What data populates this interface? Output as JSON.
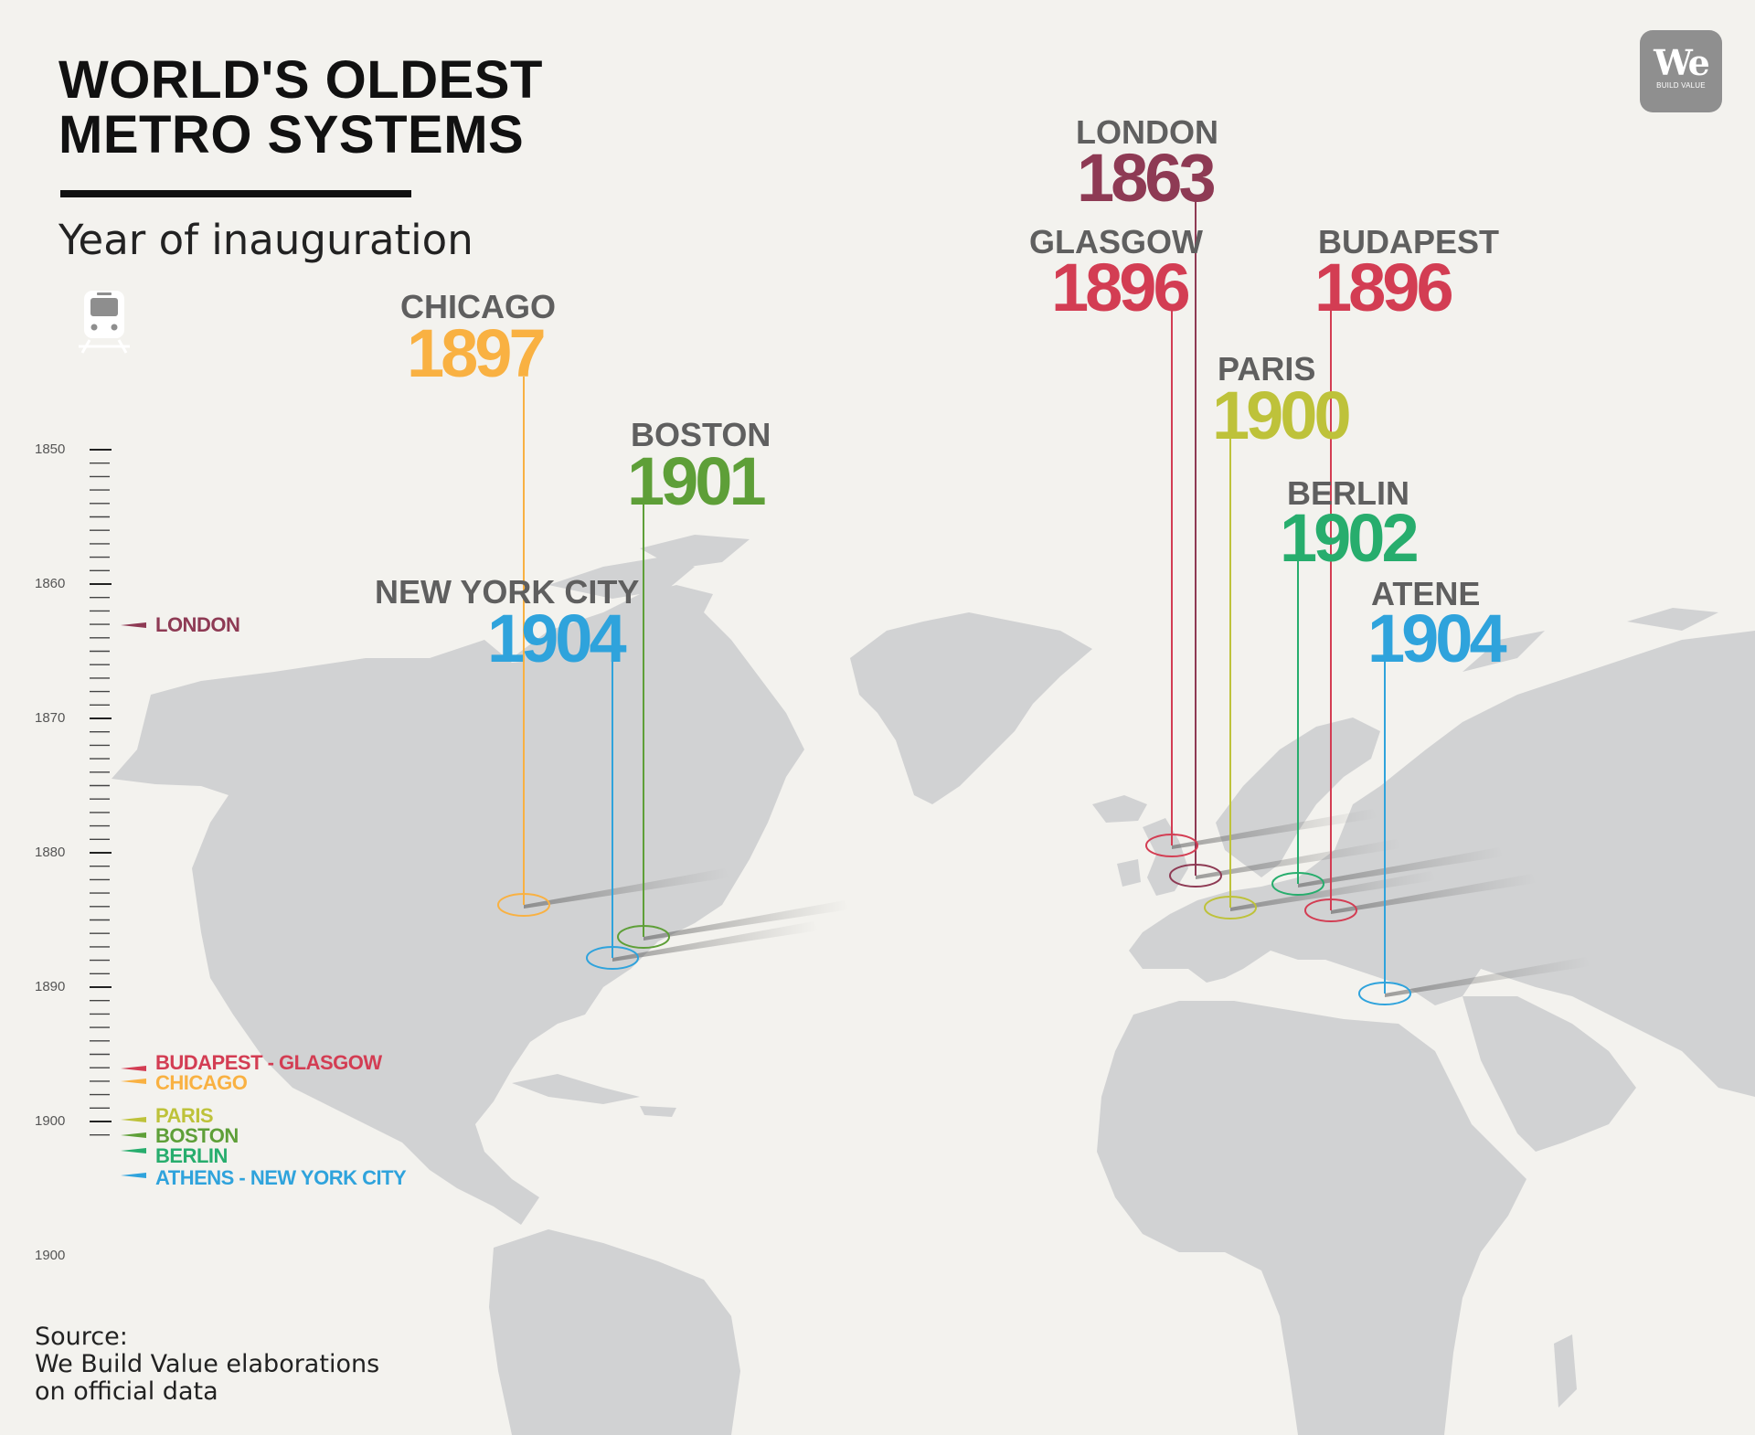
{
  "header": {
    "title_line1": "WORLD'S OLDEST",
    "title_line2": "METRO SYSTEMS",
    "subtitle": "Year of inauguration",
    "train_icon": "train-icon"
  },
  "logo": {
    "big": "We",
    "small": "BUILD VALUE"
  },
  "source": {
    "line1": "Source:",
    "line2": "We Build Value elaborations",
    "line3": "on official data"
  },
  "colors": {
    "land": "#d1d2d3",
    "background": "#f3f2ee",
    "london": "#8e3a54",
    "glasgow": "#d33d53",
    "budapest": "#d33d53",
    "chicago": "#f9b142",
    "paris": "#bec23a",
    "boston": "#5e9f38",
    "berlin": "#27ad6d",
    "athens_nyc": "#2fa3dc"
  },
  "timeline": {
    "ticks": [
      "1850",
      "1860",
      "1870",
      "1880",
      "1890",
      "1900",
      "1900"
    ],
    "markers": [
      {
        "label": "LONDON",
        "year": 1863,
        "color": "#8e3a54"
      },
      {
        "label": "BUDAPEST - GLASGOW",
        "year": 1896,
        "color": "#d33d53"
      },
      {
        "label": "CHICAGO",
        "year": 1897,
        "color": "#f9b142"
      },
      {
        "label": "PARIS",
        "year": 1900,
        "color": "#bec23a"
      },
      {
        "label": "BOSTON",
        "year": 1901,
        "color": "#5e9f38"
      },
      {
        "label": "BERLIN",
        "year": 1902,
        "color": "#27ad6d"
      },
      {
        "label": "ATHENS - NEW YORK CITY",
        "year": 1904,
        "color": "#2fa3dc"
      }
    ]
  },
  "cities": [
    {
      "id": "chicago",
      "name": "CHICAGO",
      "year": "1897",
      "color": "#f9b142"
    },
    {
      "id": "boston",
      "name": "BOSTON",
      "year": "1901",
      "color": "#5e9f38"
    },
    {
      "id": "new-york-city",
      "name": "NEW YORK CITY",
      "year": "1904",
      "color": "#2fa3dc"
    },
    {
      "id": "london",
      "name": "LONDON",
      "year": "1863",
      "color": "#8e3a54"
    },
    {
      "id": "glasgow",
      "name": "GLASGOW",
      "year": "1896",
      "color": "#d33d53"
    },
    {
      "id": "budapest",
      "name": "BUDAPEST",
      "year": "1896",
      "color": "#d33d53"
    },
    {
      "id": "paris",
      "name": "PARIS",
      "year": "1900",
      "color": "#bec23a"
    },
    {
      "id": "berlin",
      "name": "BERLIN",
      "year": "1902",
      "color": "#27ad6d"
    },
    {
      "id": "atene",
      "name": "ATENE",
      "year": "1904",
      "color": "#2fa3dc"
    }
  ]
}
